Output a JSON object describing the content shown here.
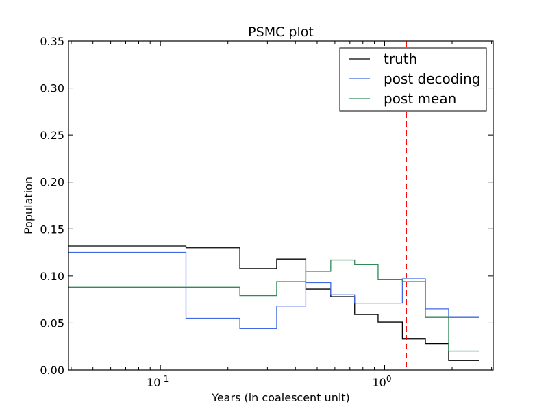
{
  "chart_data": {
    "type": "line",
    "title": "PSMC plot",
    "xlabel": "Years (in coalescent unit)",
    "ylabel": "Population",
    "xscale": "log",
    "xlim": [
      0.0389,
      3.05
    ],
    "ylim": [
      0,
      0.35
    ],
    "yticks": [
      0.0,
      0.05,
      0.1,
      0.15,
      0.2,
      0.25,
      0.3,
      0.35
    ],
    "ytick_labels": [
      "0.00",
      "0.05",
      "0.10",
      "0.15",
      "0.20",
      "0.25",
      "0.30",
      "0.35"
    ],
    "xticks": [
      0.1,
      1.0
    ],
    "xtick_labels": [
      "10",
      "10"
    ],
    "xtick_exponents": [
      "-1",
      "0"
    ],
    "legend_position": "top-right",
    "reference_line": {
      "x": 1.25,
      "style": "dashed",
      "color": "#ff0000"
    },
    "series": [
      {
        "name": "truth",
        "color": "#000000",
        "x": [
          0.0389,
          0.13,
          0.226,
          0.33,
          0.445,
          0.575,
          0.735,
          0.935,
          1.2,
          1.52,
          1.93,
          2.65
        ],
        "values": [
          0.132,
          0.13,
          0.108,
          0.118,
          0.086,
          0.078,
          0.059,
          0.051,
          0.033,
          0.028,
          0.01,
          0.01
        ]
      },
      {
        "name": "post decoding",
        "color": "#4169e1",
        "x": [
          0.0389,
          0.13,
          0.226,
          0.33,
          0.445,
          0.575,
          0.735,
          0.935,
          1.2,
          1.52,
          1.93,
          2.65
        ],
        "values": [
          0.125,
          0.055,
          0.044,
          0.068,
          0.093,
          0.08,
          0.071,
          0.071,
          0.097,
          0.065,
          0.056,
          0.056
        ]
      },
      {
        "name": "post mean",
        "color": "#2e8b57",
        "x": [
          0.0389,
          0.13,
          0.226,
          0.33,
          0.445,
          0.575,
          0.735,
          0.935,
          1.2,
          1.52,
          1.93,
          2.65
        ],
        "values": [
          0.088,
          0.088,
          0.079,
          0.094,
          0.105,
          0.117,
          0.112,
          0.096,
          0.094,
          0.056,
          0.02,
          0.02
        ]
      }
    ]
  }
}
